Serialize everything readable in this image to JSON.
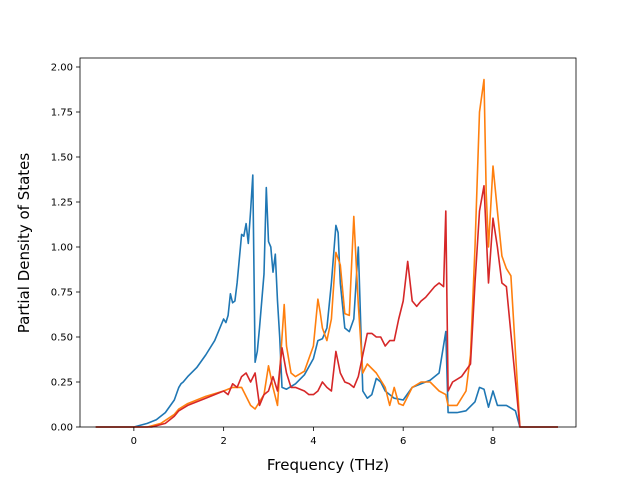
{
  "chart_data": {
    "type": "line",
    "title": "",
    "xlabel": "Frequency (THz)",
    "ylabel": "Partial Density of States",
    "xlim": [
      -1.2,
      9.85
    ],
    "ylim": [
      0,
      2.05
    ],
    "xticks": [
      0,
      2,
      4,
      6,
      8
    ],
    "yticks": [
      0.0,
      0.25,
      0.5,
      0.75,
      1.0,
      1.25,
      1.5,
      1.75,
      2.0
    ],
    "xtick_labels": [
      "0",
      "2",
      "4",
      "6",
      "8"
    ],
    "ytick_labels": [
      "0.00",
      "0.25",
      "0.50",
      "0.75",
      "1.00",
      "1.25",
      "1.50",
      "1.75",
      "2.00"
    ],
    "grid": false,
    "legend": "none",
    "series": [
      {
        "color": "#1f77b4",
        "x": [
          -0.85,
          0.0,
          0.3,
          0.5,
          0.7,
          0.9,
          1.0,
          1.05,
          1.1,
          1.2,
          1.4,
          1.6,
          1.8,
          2.0,
          2.05,
          2.1,
          2.15,
          2.2,
          2.25,
          2.3,
          2.4,
          2.45,
          2.5,
          2.55,
          2.6,
          2.65,
          2.7,
          2.75,
          2.8,
          2.9,
          2.95,
          3.0,
          3.05,
          3.1,
          3.15,
          3.2,
          3.25,
          3.3,
          3.4,
          3.6,
          3.8,
          4.0,
          4.1,
          4.2,
          4.3,
          4.4,
          4.5,
          4.55,
          4.6,
          4.7,
          4.8,
          4.9,
          5.0,
          5.1,
          5.2,
          5.3,
          5.4,
          5.5,
          5.6,
          5.8,
          6.0,
          6.2,
          6.4,
          6.6,
          6.8,
          6.95,
          7.0,
          7.2,
          7.4,
          7.6,
          7.7,
          7.8,
          7.9,
          8.0,
          8.1,
          8.2,
          8.3,
          8.5,
          8.6,
          9.45
        ],
        "y": [
          0.0,
          0.0,
          0.02,
          0.04,
          0.08,
          0.15,
          0.22,
          0.24,
          0.25,
          0.28,
          0.33,
          0.4,
          0.48,
          0.6,
          0.58,
          0.62,
          0.74,
          0.69,
          0.7,
          0.8,
          1.07,
          1.06,
          1.13,
          1.02,
          1.2,
          1.4,
          0.36,
          0.42,
          0.55,
          0.85,
          1.33,
          1.03,
          1.0,
          0.86,
          0.96,
          0.7,
          0.5,
          0.22,
          0.21,
          0.24,
          0.29,
          0.38,
          0.48,
          0.49,
          0.55,
          0.8,
          1.12,
          1.08,
          0.8,
          0.55,
          0.53,
          0.6,
          1.0,
          0.2,
          0.16,
          0.18,
          0.27,
          0.25,
          0.2,
          0.16,
          0.15,
          0.22,
          0.24,
          0.26,
          0.3,
          0.53,
          0.08,
          0.08,
          0.09,
          0.14,
          0.22,
          0.21,
          0.11,
          0.2,
          0.12,
          0.12,
          0.12,
          0.09,
          0.0,
          0.0
        ]
      },
      {
        "color": "#ff7f0e",
        "x": [
          -0.85,
          0.3,
          0.6,
          0.9,
          1.0,
          1.2,
          1.6,
          2.0,
          2.2,
          2.4,
          2.6,
          2.7,
          2.8,
          2.9,
          3.0,
          3.1,
          3.2,
          3.3,
          3.35,
          3.4,
          3.5,
          3.6,
          3.8,
          4.0,
          4.1,
          4.15,
          4.2,
          4.3,
          4.4,
          4.5,
          4.6,
          4.7,
          4.8,
          4.9,
          5.0,
          5.1,
          5.2,
          5.4,
          5.6,
          5.7,
          5.8,
          5.9,
          6.0,
          6.2,
          6.4,
          6.6,
          6.8,
          6.95,
          7.0,
          7.2,
          7.4,
          7.5,
          7.6,
          7.7,
          7.8,
          7.85,
          7.9,
          8.0,
          8.1,
          8.2,
          8.3,
          8.4,
          8.6,
          9.45
        ],
        "y": [
          0.0,
          0.0,
          0.02,
          0.07,
          0.1,
          0.13,
          0.17,
          0.2,
          0.22,
          0.22,
          0.12,
          0.1,
          0.14,
          0.18,
          0.34,
          0.22,
          0.12,
          0.5,
          0.68,
          0.45,
          0.3,
          0.28,
          0.31,
          0.45,
          0.71,
          0.64,
          0.55,
          0.48,
          0.6,
          0.97,
          0.9,
          0.63,
          0.62,
          1.17,
          0.68,
          0.3,
          0.35,
          0.3,
          0.22,
          0.12,
          0.22,
          0.13,
          0.12,
          0.22,
          0.25,
          0.25,
          0.2,
          0.18,
          0.12,
          0.12,
          0.2,
          0.4,
          1.0,
          1.75,
          1.93,
          1.3,
          1.0,
          1.45,
          1.2,
          0.95,
          0.88,
          0.84,
          0.0,
          0.0
        ]
      },
      {
        "color": "#d62728",
        "x": [
          -0.85,
          0.4,
          0.7,
          0.9,
          1.0,
          1.2,
          1.6,
          2.0,
          2.1,
          2.2,
          2.3,
          2.4,
          2.5,
          2.6,
          2.7,
          2.8,
          2.9,
          3.0,
          3.1,
          3.2,
          3.3,
          3.4,
          3.5,
          3.6,
          3.8,
          3.9,
          4.0,
          4.1,
          4.2,
          4.3,
          4.4,
          4.5,
          4.6,
          4.7,
          4.8,
          4.9,
          5.0,
          5.1,
          5.2,
          5.3,
          5.4,
          5.5,
          5.6,
          5.7,
          5.8,
          5.9,
          6.0,
          6.1,
          6.2,
          6.3,
          6.4,
          6.5,
          6.6,
          6.7,
          6.8,
          6.9,
          6.95,
          7.0,
          7.1,
          7.3,
          7.5,
          7.6,
          7.7,
          7.8,
          7.9,
          8.0,
          8.1,
          8.2,
          8.3,
          8.6,
          9.45
        ],
        "y": [
          0.0,
          0.0,
          0.02,
          0.06,
          0.09,
          0.12,
          0.16,
          0.2,
          0.18,
          0.24,
          0.22,
          0.28,
          0.3,
          0.25,
          0.3,
          0.12,
          0.18,
          0.2,
          0.28,
          0.2,
          0.44,
          0.3,
          0.22,
          0.22,
          0.2,
          0.18,
          0.18,
          0.2,
          0.25,
          0.22,
          0.2,
          0.42,
          0.3,
          0.25,
          0.24,
          0.22,
          0.28,
          0.4,
          0.52,
          0.52,
          0.5,
          0.5,
          0.45,
          0.48,
          0.48,
          0.6,
          0.7,
          0.92,
          0.7,
          0.67,
          0.7,
          0.72,
          0.75,
          0.78,
          0.8,
          0.78,
          1.2,
          0.2,
          0.25,
          0.28,
          0.35,
          0.8,
          1.2,
          1.34,
          0.8,
          1.16,
          1.0,
          0.8,
          0.78,
          0.0,
          0.0
        ]
      }
    ]
  }
}
